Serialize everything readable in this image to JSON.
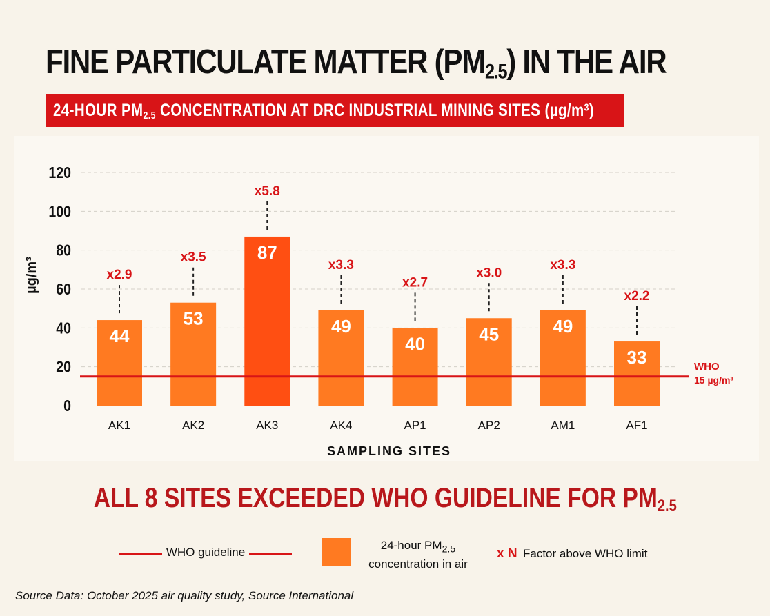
{
  "title": {
    "main": "FINE PARTICULATE MATTER (PM",
    "sub": "2.5",
    "tail": ") IN THE AIR"
  },
  "subtitle": {
    "pre": "24-HOUR PM",
    "sub": "2.5",
    "mid": " CONCENTRATION AT DRC INDUSTRIAL MINING SITES (µg/m",
    "sup": "3",
    "post": ")"
  },
  "headline": {
    "pre": "ALL 8 SITES EXCEEDED WHO GUIDELINE FOR PM",
    "sub": "2.5"
  },
  "legend": {
    "who_line_label": "WHO guideline",
    "bar_label_pre": "24-hour PM",
    "bar_label_sub": "2.5",
    "bar_label_post": "concentration in air",
    "factor_symbol": "x N",
    "factor_label": "Factor above WHO limit"
  },
  "source": "Source Data: October 2025 air quality study, Source International",
  "colors": {
    "bar": "#ff7a21",
    "bar_max": "#ff4f12",
    "who_line": "#d81417",
    "factor_text": "#d81417"
  },
  "chart_data": {
    "type": "bar",
    "xlabel": "SAMPLING SITES",
    "ylabel": "µg/m³",
    "ylim": [
      0,
      120
    ],
    "yticks": [
      0,
      20,
      40,
      60,
      80,
      100,
      120
    ],
    "grid": true,
    "categories": [
      "AK1",
      "AK2",
      "AK3",
      "AK4",
      "AP1",
      "AP2",
      "AM1",
      "AF1"
    ],
    "values": [
      44,
      53,
      87,
      49,
      40,
      45,
      49,
      33
    ],
    "factors": [
      "x2.9",
      "x3.5",
      "x5.8",
      "x3.3",
      "x2.7",
      "x3.0",
      "x3.3",
      "x2.2"
    ],
    "reference_line": {
      "value": 15,
      "label_1": "WHO",
      "label_2": "15 µg/m³"
    }
  }
}
